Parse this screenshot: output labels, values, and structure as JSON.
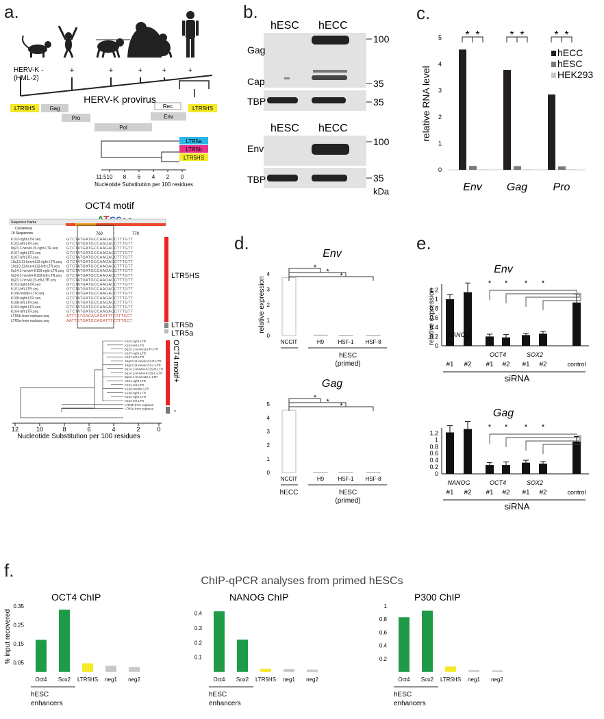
{
  "panel_letters": [
    "a.",
    "b.",
    "c.",
    "d.",
    "e.",
    "f."
  ],
  "panel_a": {
    "herv_label": "HERV-K",
    "herv_sub": "(HML-2)",
    "presence": [
      "-",
      "+",
      "+",
      "+",
      "+",
      "+"
    ],
    "provirus_title": "HERV-K provirus",
    "genes": [
      "LTR5HS",
      "Gag",
      "Pro",
      "Pol",
      "Rec",
      "Env",
      "LTR5HS"
    ],
    "tree_leaves": [
      "LTR5a",
      "LTR5b",
      "LTR5HS"
    ],
    "tree_axis_ticks": [
      "11.5",
      "10",
      "8",
      "6",
      "4",
      "2",
      "0"
    ],
    "tree_axis_label": "Nucleotide Substitution per 100 residues",
    "motif_title": "OCT4 motif",
    "align_header": [
      "Sequence Name",
      "Consensus",
      "19 Sequences"
    ],
    "align_ticks": [
      "760",
      "770"
    ],
    "align_rows": [
      {
        "name": "K102-right-LTR.seq",
        "seq": "GTCTATGATGCCAAGACCTTTGTT"
      },
      {
        "name": "K102-left-LTR.seq",
        "seq": "GTCTATGATGCCAAGACCTTTGTT"
      },
      {
        "name": "8q23.1-hervk115-right-LTR.seq",
        "seq": "GTCTATGATGCCAAGACCTTTGTT"
      },
      {
        "name": "K107-right-LTR.seq",
        "seq": "GTCTATGATGCCAAGACCTTTGTT"
      },
      {
        "name": "K107-left-LTR.seq",
        "seq": "GTCTATGATGCCAAGACCTTTGTT"
      },
      {
        "name": "19q13.11-hervk113-right-LTR.seq",
        "seq": "GTCTATGATGCCAAGACCTTTGTT"
      },
      {
        "name": "19q13.11-hervk113-left-LTR.seq",
        "seq": "GTCTATGATGCCAAGACCTTTGTT"
      },
      {
        "name": "6q14.1-hervk4-K109-right-LTR.seq",
        "seq": "GTCTATGATGCCAAGACCTTTGTT"
      },
      {
        "name": "6q14.1-hervk4-K109-left-LTR.seq",
        "seq": "GTCTATGATGCCAAGACCTTTGTT"
      },
      {
        "name": "8q23.1-hervk115-left-LTR.seq",
        "seq": "GTCTATGATGCCAAGACCTTTGTT"
      },
      {
        "name": "K101-right-LTR.seq",
        "seq": "GTCTATGATGCCAAGACCTTTGTT"
      },
      {
        "name": "K101-left-LTR.seq",
        "seq": "GTCTATGATGCCAAGACCTTTGTT"
      },
      {
        "name": "K108-middle-LTR.seq",
        "seq": "GTCTATGATGCCAAGACCTTTGTT"
      },
      {
        "name": "K108-right-LTR.seq",
        "seq": "GTCTATGATGCCAAGACCTTTGTT"
      },
      {
        "name": "K108-left-LTR.seq",
        "seq": "GTCTATGATGCCAAGACCTTTGTT"
      },
      {
        "name": "K104-right-LTR.seq",
        "seq": "GTCTATGATGCCAAGACCTTTGTT"
      },
      {
        "name": "K104-left-LTR.seq",
        "seq": "GTCTATGATGCCAAGACCTTTGTT"
      },
      {
        "name": "LTR5b-from-repbase.seq",
        "seq": "ATTTGTGACACAGATTTCTTTGCT"
      },
      {
        "name": "LTR5a-from-repbase.seq",
        "seq": "AATTGTGATGCAGATTTCTTTGCT"
      }
    ],
    "align_groups": [
      "LTR5HS",
      "LTR5b",
      "LTR5a"
    ],
    "tree2_leaves": [
      "K102-right-LTR",
      "K102-left-LTR",
      "8q23.1-hervk115-R-LTR",
      "K107-right-LTR",
      "K107-left-LTR",
      "19q13.11-hervk113-R-LTR",
      "19q13.11-hervk113-L-LTR",
      "6q14.1-hervk4-K109-R-LTR",
      "6q14.1-hervk4-K109-L-LTR",
      "8q23.1-hervk115-L-LTR",
      "K101-right-LTR",
      "K101-left-LTR",
      "K108-middle-LTR",
      "K108-right-LTR",
      "K104-right-LTR",
      "K104-left-LTR",
      "LTR5b-from-repbase",
      "LTR5a-from-repbase"
    ],
    "tree2_group_label": "OCT4 motif+",
    "tree2_minus": "-",
    "tree2_axis_ticks": [
      "12",
      "10",
      "8",
      "6",
      "4",
      "2",
      "0"
    ],
    "tree2_axis_label": "Nucleotide Substitution per 100 residues"
  },
  "panel_b": {
    "top": {
      "lanes": [
        "hESC",
        "hECC"
      ],
      "rows": [
        "Gag",
        "Cap",
        "TBP"
      ],
      "markers": [
        "100",
        "35",
        "35"
      ]
    },
    "bottom": {
      "lanes": [
        "hESC",
        "hECC"
      ],
      "rows": [
        "Env",
        "TBP"
      ],
      "markers": [
        "100",
        "35"
      ]
    },
    "unit": "kDa"
  },
  "panel_c": {
    "chart_data": {
      "type": "bar",
      "ylabel": "relative RNA level",
      "ylim": [
        0,
        5
      ],
      "yticks": [
        "0",
        "1",
        "2",
        "3",
        "4",
        "5"
      ],
      "categories": [
        "Env",
        "Gag",
        "Pro"
      ],
      "series": [
        {
          "name": "hECC",
          "color": "#231f20",
          "values": [
            4.55,
            3.78,
            2.85
          ]
        },
        {
          "name": "hESC",
          "color": "#7a7a7a",
          "values": [
            0.15,
            0.14,
            0.13
          ]
        },
        {
          "name": "HEK293",
          "color": "#c8c8c8",
          "values": [
            0.02,
            0.02,
            0.02
          ]
        }
      ],
      "significance": "*"
    }
  },
  "panel_d": {
    "chart_data": [
      {
        "type": "bar",
        "title": "Env",
        "ylabel": "relative expression",
        "ylim": [
          0,
          4
        ],
        "yticks": [
          "0",
          "1",
          "2",
          "3",
          "4"
        ],
        "categories": [
          "NCCIT",
          "H9",
          "HSF-1",
          "HSF-8"
        ],
        "values": [
          3.75,
          0.03,
          0.02,
          0.02
        ],
        "group_labels": [
          "hESC",
          "(primed)"
        ],
        "significance": "*"
      },
      {
        "type": "bar",
        "title": "Gag",
        "ylim": [
          0,
          5
        ],
        "yticks": [
          "0",
          "1",
          "2",
          "3",
          "4",
          "5"
        ],
        "categories": [
          "NCCIT",
          "H9",
          "HSF-1",
          "HSF-8"
        ],
        "values": [
          4.55,
          0.02,
          0.02,
          0.02
        ],
        "group_labels": [
          "hECC",
          "hESC",
          "(primed)"
        ],
        "significance": "*"
      }
    ]
  },
  "panel_e": {
    "chart_data": [
      {
        "type": "bar",
        "title": "Env",
        "ylabel": "relative expression",
        "ylim": [
          0,
          1.4
        ],
        "yticks": [
          "0",
          "0.2",
          "0.4",
          "0.6",
          "0.8",
          "1",
          "1.2"
        ],
        "categories": [
          "#1",
          "#2",
          "#1",
          "#2",
          "#1",
          "#2",
          "control"
        ],
        "gene_labels": [
          "NANOG",
          "OCT4",
          "SOX2"
        ],
        "values": [
          1.0,
          1.15,
          0.2,
          0.18,
          0.23,
          0.26,
          0.93
        ],
        "errors": [
          0.1,
          0.2,
          0.05,
          0.06,
          0.04,
          0.05,
          0.18
        ],
        "xlabel": "siRNA",
        "significance": "*"
      },
      {
        "type": "bar",
        "title": "Gag",
        "ylim": [
          0,
          1.4
        ],
        "yticks": [
          "0",
          "0.2",
          "0.4",
          "0.6",
          "0.8",
          "1",
          "1.2"
        ],
        "categories": [
          "#1",
          "#2",
          "#1",
          "#2",
          "#1",
          "#2",
          "control"
        ],
        "gene_labels": [
          "NANOG",
          "OCT4",
          "SOX2"
        ],
        "values": [
          1.22,
          1.32,
          0.26,
          0.26,
          0.33,
          0.3,
          0.95
        ],
        "errors": [
          0.2,
          0.22,
          0.07,
          0.09,
          0.07,
          0.06,
          0.15
        ],
        "xlabel": "siRNA",
        "significance": "*"
      }
    ]
  },
  "panel_f": {
    "title": "ChIP-qPCR analyses from primed hESCs",
    "ylabel": "% input recovered",
    "group_label": [
      "hESC",
      "enhancers"
    ],
    "chart_data": [
      {
        "type": "bar",
        "title": "OCT4 ChIP",
        "categories": [
          "Oct4",
          "Sox2",
          "LTR5HS",
          "neg1",
          "neg2"
        ],
        "values": [
          0.17,
          0.33,
          0.045,
          0.032,
          0.025
        ],
        "colors": [
          "#1f9b48",
          "#1f9b48",
          "#f4ea29",
          "#c8c8c8",
          "#c8c8c8"
        ],
        "ylim": [
          0,
          0.35
        ],
        "yticks": [
          "0.05",
          "0.15",
          "0.25",
          "0.35"
        ]
      },
      {
        "type": "bar",
        "title": "NANOG ChIP",
        "categories": [
          "Oct4",
          "Sox2",
          "LTR5HS",
          "neg1",
          "neg2"
        ],
        "values": [
          0.415,
          0.22,
          0.02,
          0.018,
          0.015
        ],
        "colors": [
          "#1f9b48",
          "#1f9b48",
          "#f4ea29",
          "#c8c8c8",
          "#c8c8c8"
        ],
        "ylim": [
          0,
          0.45
        ],
        "yticks": [
          "0.1",
          "0.2",
          "0.3",
          "0.4"
        ]
      },
      {
        "type": "bar",
        "title": "P300 ChIP",
        "categories": [
          "Oct4",
          "Sox2",
          "LTR5HS",
          "neg1",
          "neg2"
        ],
        "values": [
          0.83,
          0.93,
          0.08,
          0.025,
          0.02
        ],
        "colors": [
          "#1f9b48",
          "#1f9b48",
          "#f4ea29",
          "#c8c8c8",
          "#c8c8c8"
        ],
        "ylim": [
          0,
          1.0
        ],
        "yticks": [
          "0.2",
          "0.4",
          "0.6",
          "0.8",
          "1"
        ]
      }
    ]
  }
}
